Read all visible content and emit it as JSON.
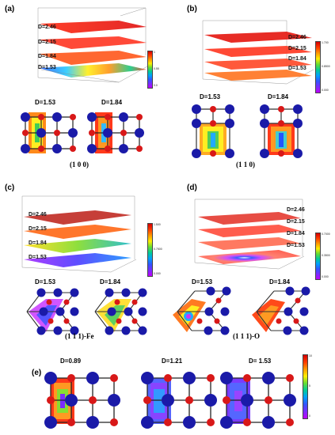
{
  "panels": {
    "a": {
      "label": "(a)",
      "layers": [
        "D=2.46",
        "D=2.15",
        "D=1.84",
        "D=1.53"
      ],
      "slices": [
        "D=1.53",
        "D=1.84"
      ],
      "caption": "(1 0 0)",
      "colorbar_ticks": [
        "1",
        "0.99",
        "0.88",
        "0.77",
        "0.66",
        "0.55",
        "0.44",
        "0.33",
        "0.22",
        "0.11",
        "0.0"
      ]
    },
    "b": {
      "label": "(b)",
      "layers": [
        "D=2.46",
        "D=2.15",
        "D=1.84",
        "D=1.53"
      ],
      "slices": [
        "D=1.53",
        "D=1.84"
      ],
      "caption": "(1 1 0)",
      "colorbar_ticks": [
        "1.700",
        "1.530",
        "1.360",
        "1.190",
        "1.020",
        "0.8500",
        "0.6800",
        "0.5100",
        "0.3400",
        "0.1700",
        "0.000"
      ]
    },
    "c": {
      "label": "(c)",
      "layers": [
        "D=2.46",
        "D=2.15",
        "D=1.84",
        "D=1.53"
      ],
      "slices": [
        "D=1.53",
        "D=1.84"
      ],
      "caption": "(1 1 1)-Fe",
      "colorbar_ticks": [
        "1.500",
        "1.350",
        "1.200",
        "1.050",
        "0.9000",
        "0.7500",
        "0.6000",
        "0.4500",
        "0.3000",
        "0.1500",
        "0.000"
      ]
    },
    "d": {
      "label": "(d)",
      "layers": [
        "D=2.46",
        "D=2.15",
        "D=1.84",
        "D=1.53"
      ],
      "slices": [
        "D=1.53",
        "D=1.84"
      ],
      "caption": "(1 1 1)-O",
      "colorbar_ticks": [
        "0.7000",
        "0.6300",
        "0.5600",
        "0.4900",
        "0.4200",
        "0.3500",
        "0.2800",
        "0.2100",
        "0.1400",
        "0.0700",
        "0.000"
      ]
    },
    "e": {
      "label": "(e)",
      "slices": [
        "D=0.89",
        "D=1.21",
        "D= 1.53"
      ],
      "colorbar_ticks": [
        "10",
        "9",
        "8",
        "7",
        "6",
        "5",
        "4",
        "3",
        "2",
        "1",
        "0"
      ]
    }
  },
  "colors": {
    "iron": "#1a1aa8",
    "oxygen": "#d81818",
    "stack_warm": "#ff3a2a",
    "stack_hot": "#d40000"
  }
}
